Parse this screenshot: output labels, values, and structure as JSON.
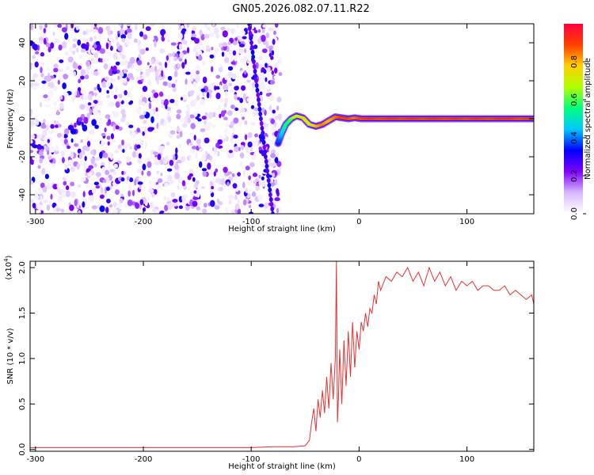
{
  "title": "GN05.2026.082.07.11.R22",
  "chart_data": [
    {
      "type": "heatmap",
      "xlabel": "Height of straight line (km)",
      "ylabel": "Frequency (Hz)",
      "xlim": [
        -305,
        162
      ],
      "ylim": [
        -50,
        50
      ],
      "xticks": [
        -300,
        -200,
        -100,
        0,
        100
      ],
      "yticks": [
        -40,
        -20,
        0,
        20,
        40
      ],
      "colorbar": {
        "label": "Normalized spectral amplitude",
        "range": [
          0,
          1
        ],
        "ticks": [
          "0.0",
          "0.2",
          "0.4",
          "0.6",
          "0.8"
        ],
        "colors": [
          "#ffffff",
          "#d8b8ff",
          "#8000ff",
          "#0000ff",
          "#00c8ff",
          "#00ff80",
          "#b0ff00",
          "#ffd000",
          "#ff4000",
          "#ff0040"
        ]
      },
      "noise_region_x": [
        -305,
        -70
      ],
      "signal_track": {
        "x": [
          -75,
          -72,
          -68,
          -63,
          -58,
          -52,
          -46,
          -40,
          -34,
          -28,
          -22,
          -16,
          -10,
          -4,
          2,
          10,
          20,
          30,
          40,
          50,
          60,
          70,
          80,
          90,
          100,
          110,
          120,
          130,
          140,
          150,
          162
        ],
        "y": [
          -13,
          -8,
          -3,
          0,
          1.5,
          0.5,
          -3,
          -4,
          -3,
          -1,
          1,
          0.5,
          0,
          0.5,
          0,
          0,
          0,
          0,
          0,
          0,
          0,
          0,
          0,
          0,
          0,
          0,
          0,
          0,
          0,
          0,
          0
        ],
        "amplitude": [
          0.35,
          0.45,
          0.55,
          0.6,
          0.7,
          0.75,
          0.7,
          0.8,
          0.85,
          0.8,
          0.85,
          0.9,
          0.9,
          0.85,
          0.9,
          0.95,
          0.9,
          0.95,
          0.9,
          0.95,
          0.9,
          0.95,
          0.9,
          0.95,
          0.9,
          0.95,
          0.9,
          0.95,
          0.95,
          0.9,
          0.95
        ]
      },
      "diagonal_streak": {
        "x": [
          -102,
          -80
        ],
        "y": [
          50,
          -50
        ]
      }
    },
    {
      "type": "line",
      "xlabel": "Height of straight line (km)",
      "ylabel": "SNR (10 * v/v)",
      "yscale_label": "(x10",
      "yscale_exp": "4",
      "xlim": [
        -305,
        162
      ],
      "ylim": [
        -0.02,
        2.07
      ],
      "xticks": [
        -300,
        -200,
        -100,
        0,
        100
      ],
      "yticks": [
        "0.0",
        "0.5",
        "1.0",
        "1.5",
        "2.0"
      ],
      "color": "#e83030",
      "series": [
        {
          "x": [
            -305,
            -280,
            -250,
            -220,
            -190,
            -160,
            -130,
            -100,
            -80,
            -60,
            -50,
            -46,
            -44,
            -42,
            -40,
            -38,
            -36,
            -34,
            -32,
            -30,
            -28,
            -26,
            -24,
            -22,
            -21,
            -20,
            -19,
            -18,
            -16,
            -14,
            -12,
            -10,
            -8,
            -6,
            -4,
            -2,
            0,
            2,
            4,
            6,
            8,
            10,
            12,
            14,
            16,
            18,
            20,
            25,
            30,
            35,
            40,
            45,
            50,
            55,
            60,
            65,
            70,
            75,
            80,
            85,
            90,
            95,
            100,
            105,
            110,
            115,
            120,
            125,
            130,
            135,
            140,
            145,
            150,
            155,
            160,
            162
          ],
          "values": [
            0.02,
            0.02,
            0.02,
            0.02,
            0.02,
            0.02,
            0.02,
            0.02,
            0.03,
            0.03,
            0.04,
            0.1,
            0.3,
            0.45,
            0.2,
            0.55,
            0.35,
            0.65,
            0.4,
            0.8,
            0.45,
            0.95,
            0.55,
            1.0,
            2.07,
            0.3,
            0.6,
            1.1,
            0.5,
            1.2,
            0.7,
            1.3,
            0.8,
            1.4,
            0.9,
            1.3,
            1.1,
            1.4,
            1.3,
            1.5,
            1.35,
            1.55,
            1.5,
            1.7,
            1.6,
            1.85,
            1.75,
            1.9,
            1.85,
            1.95,
            1.9,
            2.0,
            1.85,
            1.95,
            1.8,
            2.0,
            1.85,
            1.95,
            1.8,
            1.9,
            1.75,
            1.85,
            1.8,
            1.85,
            1.75,
            1.8,
            1.8,
            1.75,
            1.75,
            1.8,
            1.7,
            1.75,
            1.7,
            1.65,
            1.7,
            1.6
          ]
        }
      ]
    }
  ]
}
